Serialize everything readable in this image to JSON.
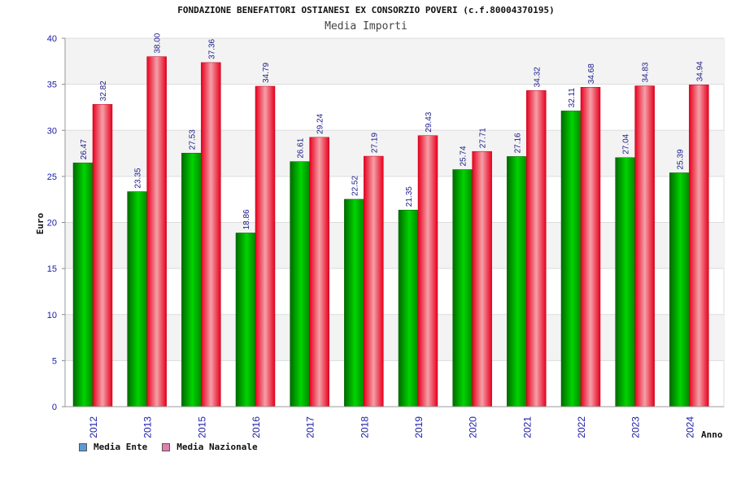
{
  "header": {
    "title": "FONDAZIONE BENEFATTORI OSTIANESI EX CONSORZIO POVERI (c.f.80004370195)",
    "subtitle": "Media Importi"
  },
  "legend": {
    "items": [
      {
        "label": "Media Ente",
        "color": "#5b9bd5"
      },
      {
        "label": "Media Nazionale",
        "color": "#e07fb0"
      }
    ]
  },
  "chart_data": {
    "type": "bar",
    "title": "Media Importi",
    "xlabel": "Anno",
    "ylabel": "Euro",
    "ylim": [
      0,
      40
    ],
    "yticks": [
      0,
      5,
      10,
      15,
      20,
      25,
      30,
      35,
      40
    ],
    "categories": [
      "2012",
      "2013",
      "2015",
      "2016",
      "2017",
      "2018",
      "2019",
      "2020",
      "2021",
      "2022",
      "2023",
      "2024"
    ],
    "series": [
      {
        "name": "Media Ente",
        "color": "#00b000",
        "values": [
          26.47,
          23.35,
          27.53,
          18.86,
          26.61,
          22.52,
          21.35,
          25.74,
          27.16,
          32.11,
          27.04,
          25.39
        ],
        "labels": [
          "26.47",
          "23.35",
          "27.53",
          "18.86",
          "26.61",
          "22.52",
          "21.35",
          "25.74",
          "27.16",
          "32.11",
          "27.04",
          "25.39"
        ]
      },
      {
        "name": "Media Nazionale",
        "color": "#ff1030",
        "values": [
          32.82,
          38.0,
          37.36,
          34.79,
          29.24,
          27.19,
          29.43,
          27.71,
          34.32,
          34.68,
          34.83,
          34.94
        ],
        "labels": [
          "32.82",
          "38.00",
          "37.36",
          "34.79",
          "29.24",
          "27.19",
          "29.43",
          "27.71",
          "34.32",
          "34.68",
          "34.83",
          "34.94"
        ]
      }
    ],
    "grid": true,
    "legend_position": "bottom-left"
  }
}
